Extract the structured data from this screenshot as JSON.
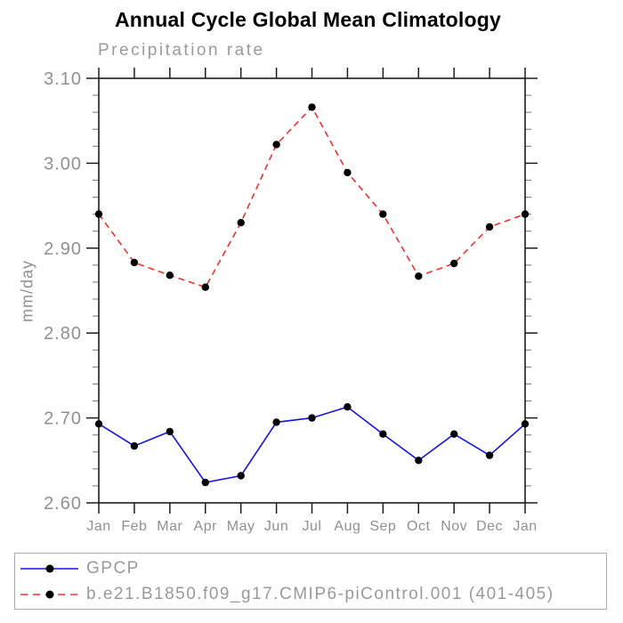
{
  "window": {
    "background": "#ffffff"
  },
  "header": {
    "title": "Annual Cycle Global Mean Climatology",
    "subtitle": "Precipitation rate"
  },
  "chart_data": {
    "type": "line",
    "title": "Annual Cycle Global Mean Climatology",
    "subtitle": "Precipitation rate",
    "xlabel": "",
    "ylabel": "mm/day",
    "categories": [
      "Jan",
      "Feb",
      "Mar",
      "Apr",
      "May",
      "Jun",
      "Jul",
      "Aug",
      "Sep",
      "Oct",
      "Nov",
      "Dec",
      "Jan"
    ],
    "ylim": [
      2.6,
      3.1
    ],
    "ytick_step": 0.1,
    "yminor_step": 0.02,
    "ytick_labels": [
      "2.60",
      "2.70",
      "2.80",
      "2.90",
      "3.00",
      "3.10"
    ],
    "grid": false,
    "legend_position": "bottom-outside",
    "axis_color": "#1c1c1c",
    "minor_tick_color": "#808080",
    "tick_label_color": "#8f8f8f",
    "series": [
      {
        "name": "GPCP",
        "color": "#1414e0",
        "line_style": "solid",
        "marker": "filled-circle",
        "marker_color": "#000000",
        "values": [
          2.693,
          2.667,
          2.684,
          2.624,
          2.632,
          2.695,
          2.7,
          2.713,
          2.681,
          2.65,
          2.681,
          2.656,
          2.693
        ]
      },
      {
        "name": "b.e21.B1850.f09_g17.CMIP6-piControl.001 (401-405)",
        "color": "#f03030",
        "line_style": "dashed",
        "marker": "filled-circle",
        "marker_color": "#000000",
        "values": [
          2.94,
          2.883,
          2.868,
          2.854,
          2.93,
          3.022,
          3.066,
          2.989,
          2.94,
          2.867,
          2.882,
          2.925,
          2.94
        ]
      }
    ]
  }
}
